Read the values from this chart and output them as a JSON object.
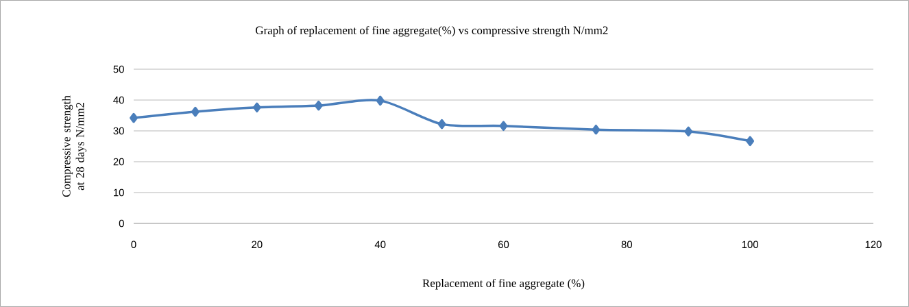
{
  "chart_data": {
    "type": "line",
    "title": "Graph of replacement of fine aggregate(%) vs compressive strength N/mm2",
    "xlabel": "Replacement of fine aggregate (%)",
    "ylabel": "Compressive strength at 28 days  N/mm2",
    "x": [
      0,
      10,
      20,
      30,
      40,
      50,
      60,
      75,
      90,
      100
    ],
    "series": [
      {
        "color": "#4a7ebb",
        "values": [
          34.2,
          36.2,
          37.6,
          38.2,
          39.8,
          32.2,
          31.6,
          30.4,
          29.8,
          26.7
        ]
      }
    ],
    "xlim": [
      0,
      120
    ],
    "ylim": [
      0,
      50
    ],
    "xticks": [
      0,
      20,
      40,
      60,
      80,
      100,
      120
    ],
    "yticks": [
      0,
      10,
      20,
      30,
      40,
      50
    ],
    "grid": "y",
    "marker": "diamond",
    "line_style": "solid"
  }
}
